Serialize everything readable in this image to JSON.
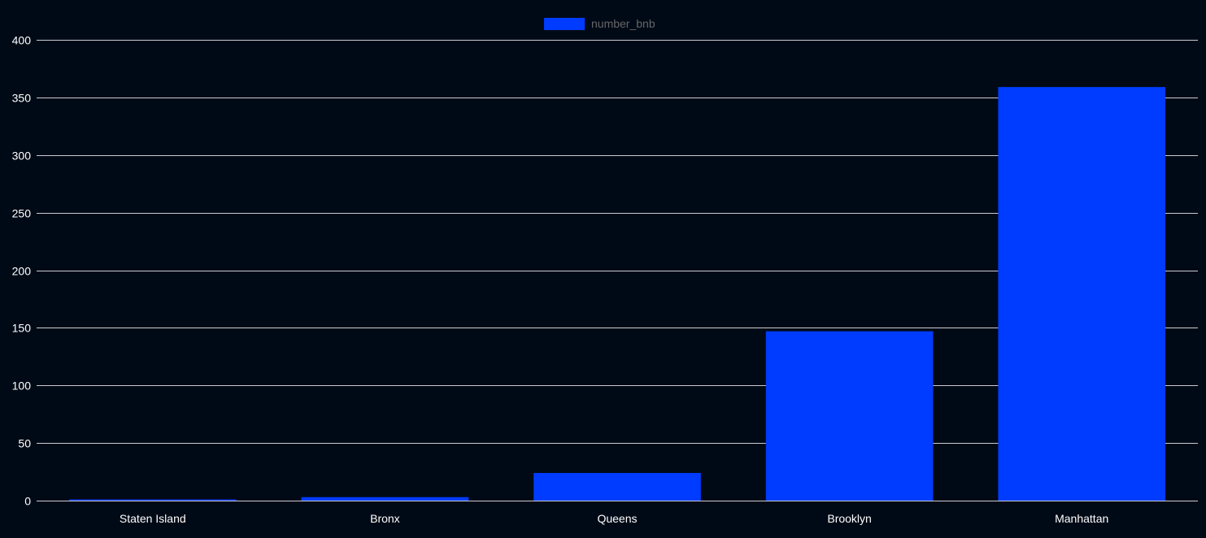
{
  "chart_data": {
    "type": "bar",
    "categories": [
      "Staten Island",
      "Bronx",
      "Queens",
      "Brooklyn",
      "Manhattan"
    ],
    "series": [
      {
        "name": "number_bnb",
        "values": [
          1,
          3,
          24,
          147,
          359
        ]
      }
    ],
    "title": "",
    "xlabel": "",
    "ylabel": "",
    "ylim": [
      0,
      400
    ],
    "yticks": [
      0,
      50,
      100,
      150,
      200,
      250,
      300,
      350,
      400
    ],
    "grid": true,
    "legend_position": "top-center"
  },
  "colors": {
    "background": "#000a16",
    "bar": "#003cff",
    "grid": "#c8ccd2",
    "tick_text": "#ffffff",
    "legend_text": "#666666"
  }
}
